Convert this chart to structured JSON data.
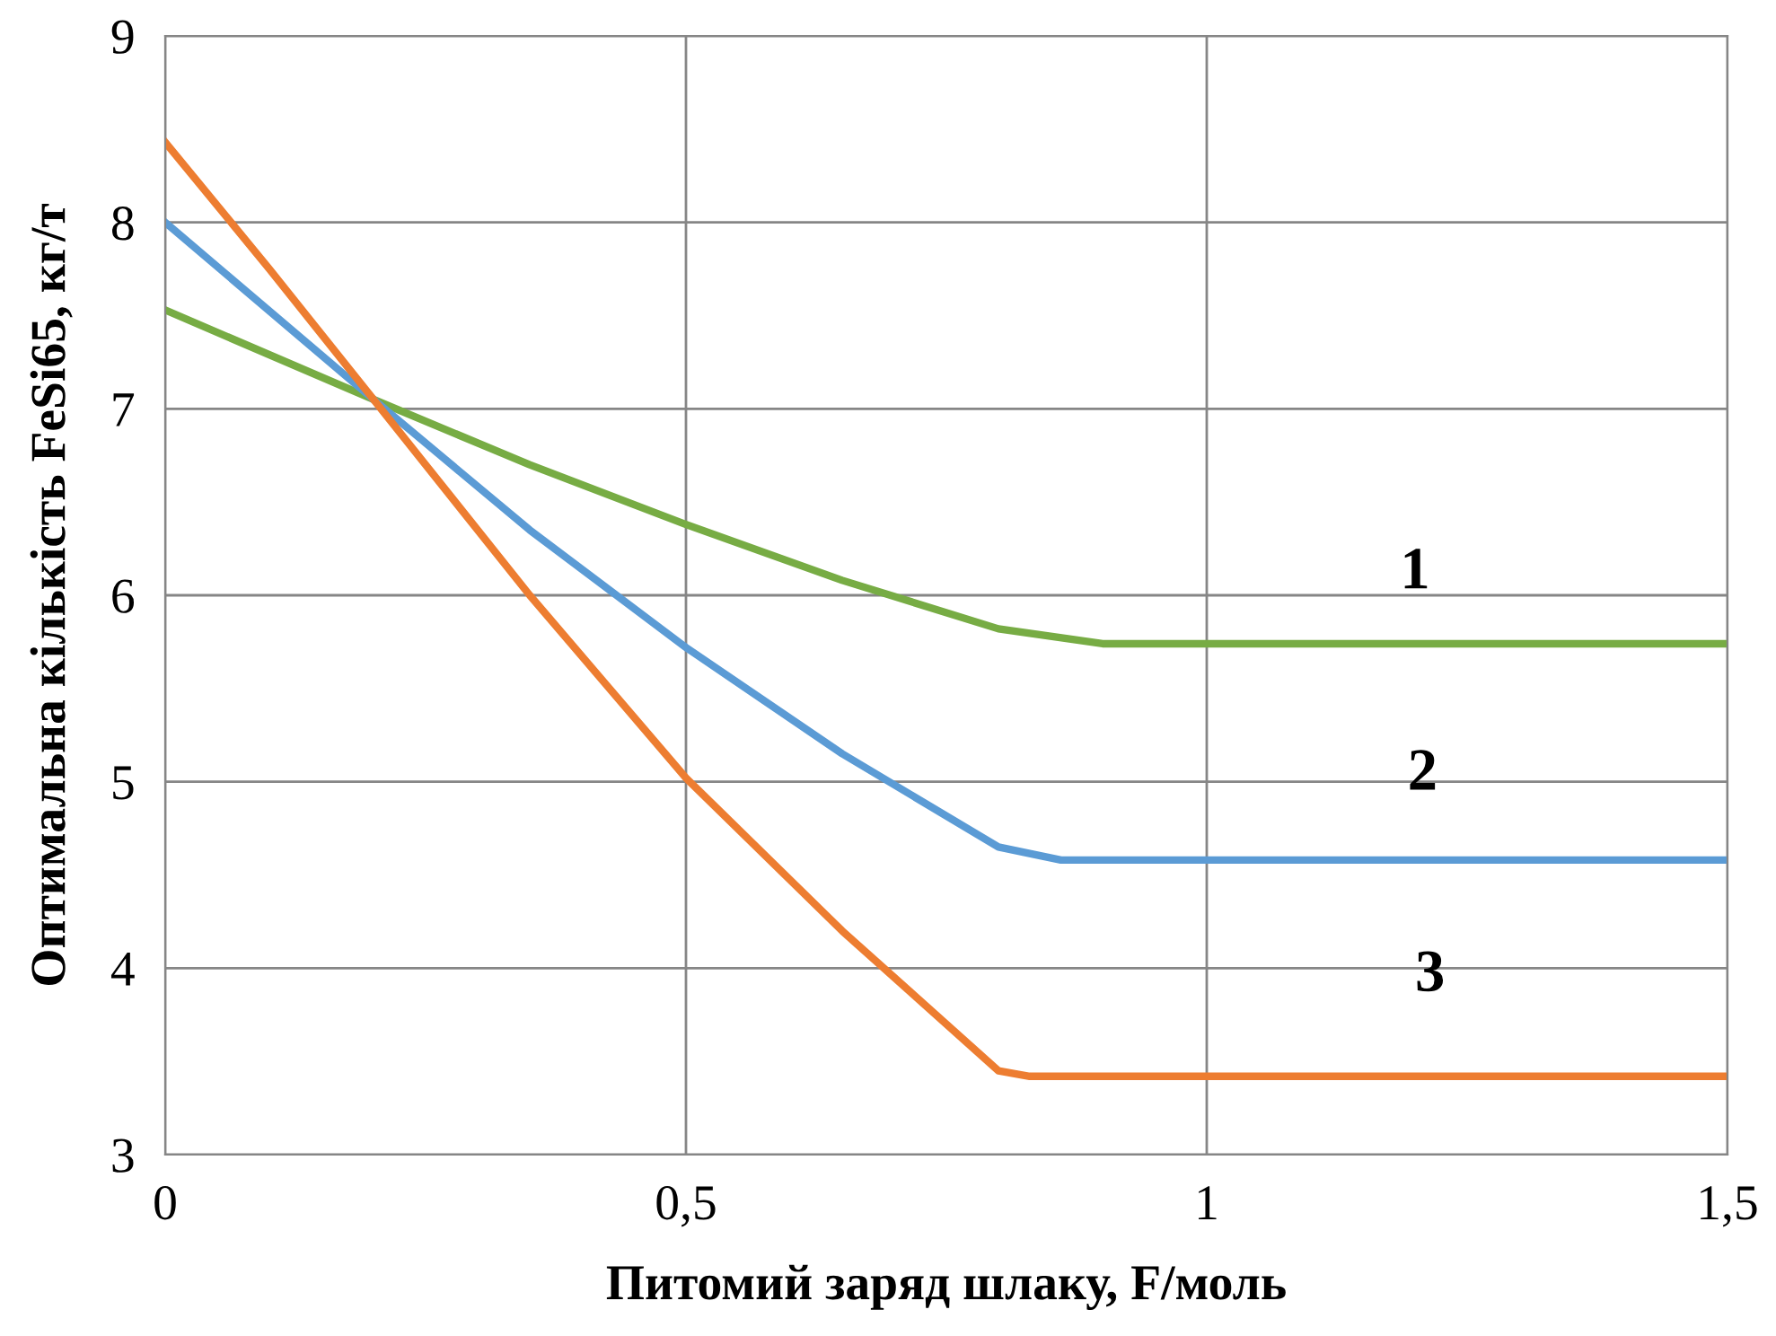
{
  "chart_data": {
    "type": "line",
    "xlabel": "Питомий заряд шлаку, F/моль",
    "ylabel": "Оптимальна кількість FeSi65, кг/т",
    "xlim": [
      0,
      1.5
    ],
    "xticks": [
      0,
      {
        "value": 0.5,
        "label": "0,5"
      },
      1,
      {
        "value": 1.5,
        "label": "1,5"
      }
    ],
    "ylim": [
      3,
      9
    ],
    "yticks": [
      3,
      4,
      5,
      6,
      7,
      8,
      9
    ],
    "grid": true,
    "marker": "none",
    "line_style": "solid",
    "series": [
      {
        "name": "1",
        "color": "#77ac44",
        "x": [
          0,
          0.2,
          0.35,
          0.5,
          0.65,
          0.8,
          0.9,
          1.0,
          1.2,
          1.5
        ],
        "values": [
          7.53,
          7.05,
          6.7,
          6.38,
          6.08,
          5.82,
          5.74,
          5.74,
          5.74,
          5.74
        ]
      },
      {
        "name": "2",
        "color": "#5b9bd5",
        "x": [
          0,
          0.2,
          0.35,
          0.5,
          0.65,
          0.8,
          0.86,
          1.0,
          1.2,
          1.5
        ],
        "values": [
          8.0,
          7.05,
          6.35,
          5.72,
          5.15,
          4.65,
          4.58,
          4.58,
          4.58,
          4.58
        ]
      },
      {
        "name": "3",
        "color": "#ed7d31",
        "x": [
          0,
          0.1,
          0.2,
          0.35,
          0.5,
          0.65,
          0.8,
          0.83,
          1.0,
          1.2,
          1.5
        ],
        "values": [
          8.43,
          7.75,
          7.05,
          6.0,
          5.02,
          4.2,
          3.45,
          3.42,
          3.42,
          3.42,
          3.42
        ]
      }
    ]
  }
}
